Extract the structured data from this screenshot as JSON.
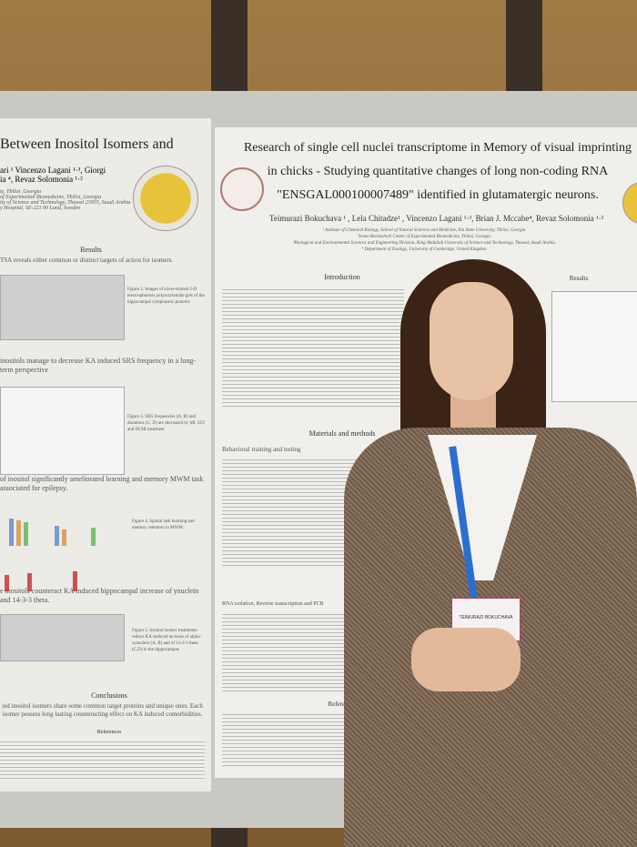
{
  "left_poster": {
    "title": "Between Inositol Isomers and",
    "authors": [
      "ari ¹ Vincenzo Lagani ¹·³, Giorgi",
      "ia ⁴, Revaz Solomonia ¹·²"
    ],
    "affiliations": [
      "ty, Tbilisi ,Georgia",
      "of Experimental Biomedicine, Tbilisi, Georgia",
      "ity of Science and Technology, Thuwal 23955, Saudi Arabia",
      "y Hospital, SE-221 00 Lund, Sweden"
    ],
    "results_heading": "Results",
    "results_text": "TSA reveals either common or distinct targets of action for isomers.",
    "section2": "inositols manage to decrease KA induced SRS frequency in a long-term perspective",
    "section3": "of inositol significantly ameliorated learning and memory MWM task associated for epilepsy.",
    "section4": "e inositols counteract KA induced hippocampal increase of ynuclein and 14-3-3 theta.",
    "fig2": "Figure 2. Images of silver-stained 2-D electrophoresis polyacrylamide gels of the hippocampal cytoplasmic proteins",
    "fig3": "Figure 3. SRS frequencies (A, B) and durations (C, D) are decreased by MI, SCI and DCHI treatment",
    "fig4": "Figure 4. Spatial task learning and memory retention in MWM.",
    "fig5": "Figure 5. Inositol isomer treatments reduce KA-induced increase of alpha-synuclein (A, B) and of 14-3-3 theta (C,D) in the hippocampus",
    "conclusions_heading": "Conclusions",
    "conclusions_text": "ied inositol isomers share some common target proteins and unique ones. Each isomer possess long lasting counteracting effect on KA induced comorbidities.",
    "references_heading": "References"
  },
  "right_poster": {
    "title": "Research of single cell nuclei transcriptome in Memory of visual imprinting in chicks - Studying quantitative changes of long non-coding RNA \"ENSGAL000100007489\" identified in glutamatergic neurons.",
    "authors": "Teimurazi Bokuchava ¹ , Lela Chitadze¹ , Vincenzo Lagani ¹·³, Brian J. Mccabe⁴, Revaz Solomonia ¹·²",
    "affiliations": [
      "¹ Institute of Chemical Biology, School of Natural Sciences and Medicine, Ilia State University, Tbilisi, Georgia",
      "²Ivane Beritashvili Center of Experimental Biomedicine, Tbilisi, Georgia",
      "³Biological and Environmental Sciences and Engineering Division, King Abdullah University of Science and Technology, Thuwal, Saudi Arabia",
      "⁴ Department of Zoology, University of Cambridge, United Kingdom"
    ],
    "introduction_heading": "Introduction",
    "results_heading": "Results",
    "methods_heading": "Materials and methods",
    "behavioral_heading": "Behavioral training and testing",
    "rna_heading": "RNA isolation, Reverse transcription and PCR",
    "references_heading": "References"
  },
  "badge": {
    "text": "TEIMURAZI BOKUCHAVA"
  },
  "colors": {
    "lanyard": "#2a6fd0",
    "poster_bg": "#f0efec",
    "wall": "#8a6a3e"
  }
}
